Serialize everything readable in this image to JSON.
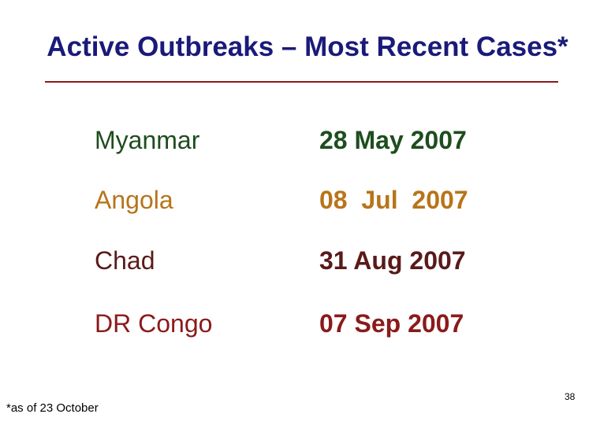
{
  "header": {
    "title": "Active Outbreaks – Most Recent Cases*"
  },
  "table": {
    "rows": [
      [
        "Myanmar",
        "28 May 2007"
      ],
      [
        "Angola",
        "08  Jul  2007"
      ],
      [
        "Chad",
        "31 Aug 2007"
      ],
      [
        "DR Congo",
        "07 Sep 2007"
      ]
    ]
  },
  "footer": {
    "note": "*as of 23 October",
    "page": "38"
  }
}
